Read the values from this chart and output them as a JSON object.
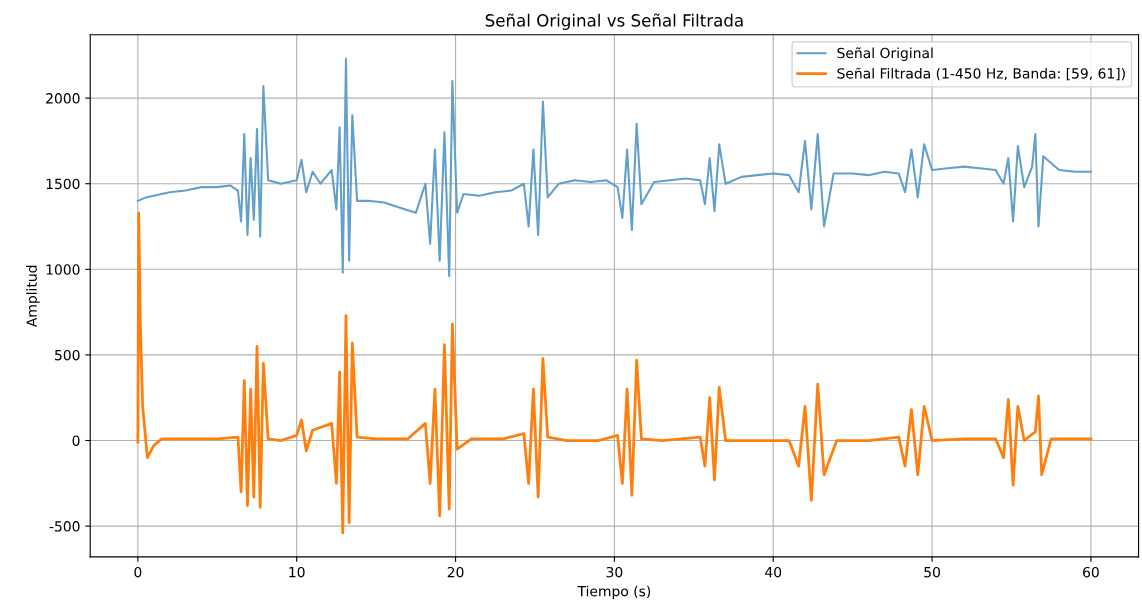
{
  "chart_data": {
    "type": "line",
    "title": "Señal Original vs Señal Filtrada",
    "xlabel": "Tiempo (s)",
    "ylabel": "Amplitud",
    "xlim": [
      -3,
      63
    ],
    "xticks": [
      0,
      10,
      20,
      30,
      40,
      50,
      60
    ],
    "ylim": [
      -680,
      2370
    ],
    "yticks": [
      -500,
      0,
      500,
      1000,
      1500,
      2000
    ],
    "grid": true,
    "legend": "top right",
    "marker": "none",
    "line_style": "solid",
    "series": [
      {
        "name": "Señal Original",
        "color": "#62a0ca",
        "x": [
          0,
          0.5,
          1,
          2,
          3,
          4,
          5,
          5.8,
          6.3,
          6.5,
          6.7,
          6.9,
          7.1,
          7.3,
          7.5,
          7.7,
          7.9,
          8.2,
          9,
          10,
          10.3,
          10.6,
          11,
          11.5,
          12.2,
          12.5,
          12.7,
          12.9,
          13.1,
          13.3,
          13.5,
          13.8,
          14.5,
          15.5,
          16.5,
          17.5,
          18.1,
          18.4,
          18.7,
          19,
          19.3,
          19.6,
          19.8,
          20.1,
          20.5,
          21.5,
          22.5,
          23.5,
          24.3,
          24.6,
          24.9,
          25.2,
          25.5,
          25.8,
          26.5,
          27.5,
          28.5,
          29.5,
          30.2,
          30.5,
          30.8,
          31.1,
          31.4,
          31.7,
          32.5,
          33.5,
          34.5,
          35.4,
          35.7,
          36,
          36.3,
          36.6,
          37,
          38,
          39,
          40,
          41,
          41.6,
          42,
          42.4,
          42.8,
          43.2,
          43.8,
          45,
          46,
          47,
          47.9,
          48.3,
          48.7,
          49.1,
          49.5,
          50,
          51,
          52,
          53,
          54,
          54.5,
          54.8,
          55.1,
          55.4,
          55.8,
          56.3,
          56.5,
          56.7,
          57,
          58,
          59,
          60
        ],
        "values": [
          1400,
          1420,
          1430,
          1450,
          1460,
          1480,
          1480,
          1490,
          1460,
          1280,
          1790,
          1200,
          1650,
          1290,
          1820,
          1190,
          2070,
          1520,
          1500,
          1520,
          1640,
          1450,
          1570,
          1500,
          1580,
          1350,
          1830,
          980,
          2230,
          1050,
          1900,
          1400,
          1400,
          1390,
          1360,
          1330,
          1500,
          1150,
          1700,
          1050,
          1800,
          960,
          2100,
          1330,
          1440,
          1430,
          1450,
          1460,
          1500,
          1250,
          1700,
          1200,
          1980,
          1420,
          1500,
          1520,
          1510,
          1520,
          1480,
          1300,
          1700,
          1230,
          1850,
          1380,
          1510,
          1520,
          1530,
          1520,
          1380,
          1650,
          1340,
          1730,
          1500,
          1540,
          1550,
          1560,
          1550,
          1450,
          1750,
          1350,
          1790,
          1250,
          1560,
          1560,
          1550,
          1570,
          1560,
          1450,
          1700,
          1420,
          1730,
          1580,
          1590,
          1600,
          1590,
          1580,
          1500,
          1650,
          1280,
          1720,
          1480,
          1600,
          1790,
          1250,
          1660,
          1580,
          1570,
          1570
        ]
      },
      {
        "name": "Señal Filtrada (1-450 Hz, Banda: [59, 61])",
        "color": "#ff7f0e",
        "x": [
          0,
          0.05,
          0.15,
          0.3,
          0.6,
          1,
          1.5,
          3,
          5,
          6.3,
          6.5,
          6.7,
          6.9,
          7.1,
          7.3,
          7.5,
          7.7,
          7.9,
          8.2,
          9,
          10,
          10.3,
          10.6,
          11,
          12.2,
          12.5,
          12.7,
          12.9,
          13.1,
          13.3,
          13.5,
          13.8,
          15,
          17,
          18.1,
          18.4,
          18.7,
          19,
          19.3,
          19.6,
          19.8,
          20.1,
          21,
          23,
          24.3,
          24.6,
          24.9,
          25.2,
          25.5,
          25.8,
          27,
          29,
          30.2,
          30.5,
          30.8,
          31.1,
          31.4,
          31.7,
          33,
          35.4,
          35.7,
          36,
          36.3,
          36.6,
          37,
          39,
          41,
          41.6,
          42,
          42.4,
          42.8,
          43.2,
          44,
          46,
          47.9,
          48.3,
          48.7,
          49.1,
          49.5,
          50,
          52,
          54,
          54.5,
          54.8,
          55.1,
          55.4,
          55.8,
          56.5,
          56.7,
          56.9,
          57.5,
          60
        ],
        "values": [
          -10,
          1330,
          700,
          200,
          -100,
          -30,
          10,
          10,
          10,
          20,
          -300,
          350,
          -380,
          300,
          -330,
          550,
          -390,
          450,
          10,
          0,
          30,
          120,
          -60,
          60,
          100,
          -250,
          400,
          -540,
          730,
          -480,
          570,
          20,
          10,
          10,
          100,
          -250,
          300,
          -440,
          560,
          -400,
          680,
          -50,
          10,
          10,
          40,
          -250,
          300,
          -330,
          480,
          20,
          0,
          0,
          30,
          -250,
          300,
          -320,
          470,
          10,
          0,
          20,
          -150,
          250,
          -230,
          310,
          0,
          0,
          0,
          -150,
          200,
          -350,
          330,
          -200,
          0,
          0,
          20,
          -150,
          180,
          -200,
          200,
          0,
          10,
          10,
          -100,
          240,
          -260,
          200,
          0,
          50,
          260,
          -200,
          10,
          10
        ]
      }
    ]
  }
}
